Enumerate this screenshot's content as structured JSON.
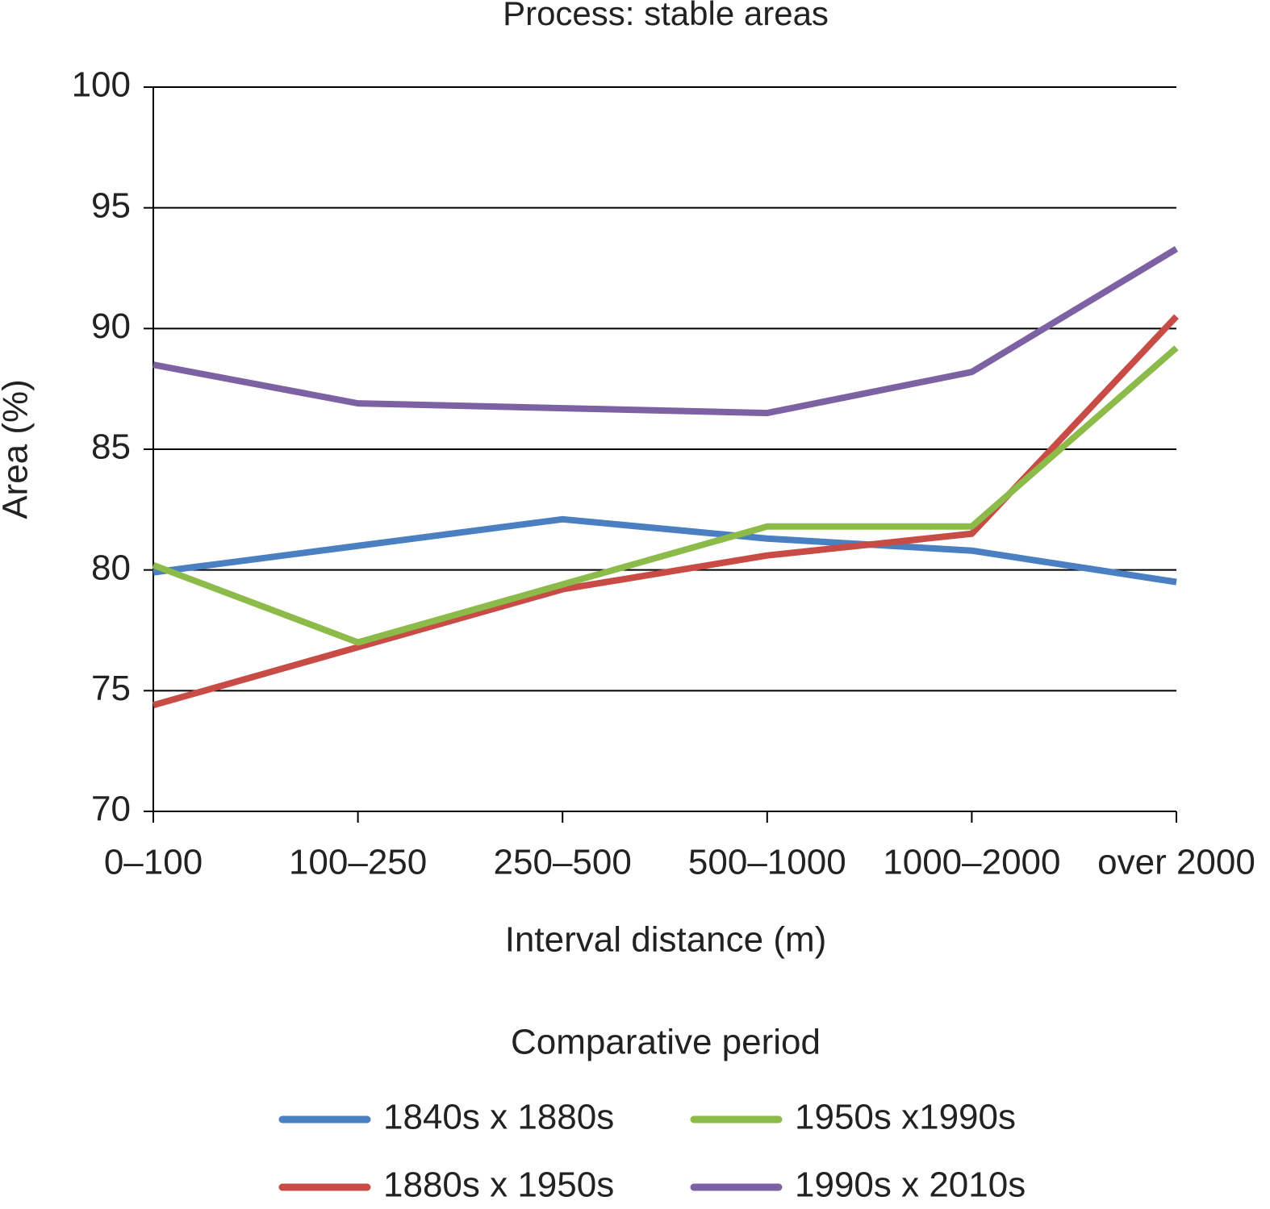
{
  "chart_data": {
    "type": "line",
    "title": "Process: stable areas",
    "x_label": "Interval distance (m)",
    "y_label": "Area (%)",
    "legend_title": "Comparative period",
    "categories": [
      "0–100",
      "100–250",
      "250–500",
      "500–1000",
      "1000–2000",
      "over 2000"
    ],
    "series": [
      {
        "name": "1840s x 1880s",
        "color": "#4a7fc1",
        "values": [
          79.9,
          81.0,
          82.1,
          81.3,
          80.8,
          79.5
        ]
      },
      {
        "name": "1880s x 1950s",
        "color": "#c84b46",
        "values": [
          74.4,
          76.8,
          79.2,
          80.6,
          81.5,
          90.5
        ]
      },
      {
        "name": "1950s x1990s",
        "color": "#8dbb4a",
        "values": [
          80.2,
          77.0,
          79.4,
          81.8,
          81.8,
          89.2
        ]
      },
      {
        "name": "1990s x 2010s",
        "color": "#7d62a3",
        "values": [
          88.5,
          86.9,
          86.7,
          86.5,
          88.2,
          93.3
        ]
      }
    ],
    "ylim": [
      70,
      100
    ],
    "yticks": [
      70,
      75,
      80,
      85,
      90,
      95,
      100
    ],
    "grid": true
  }
}
